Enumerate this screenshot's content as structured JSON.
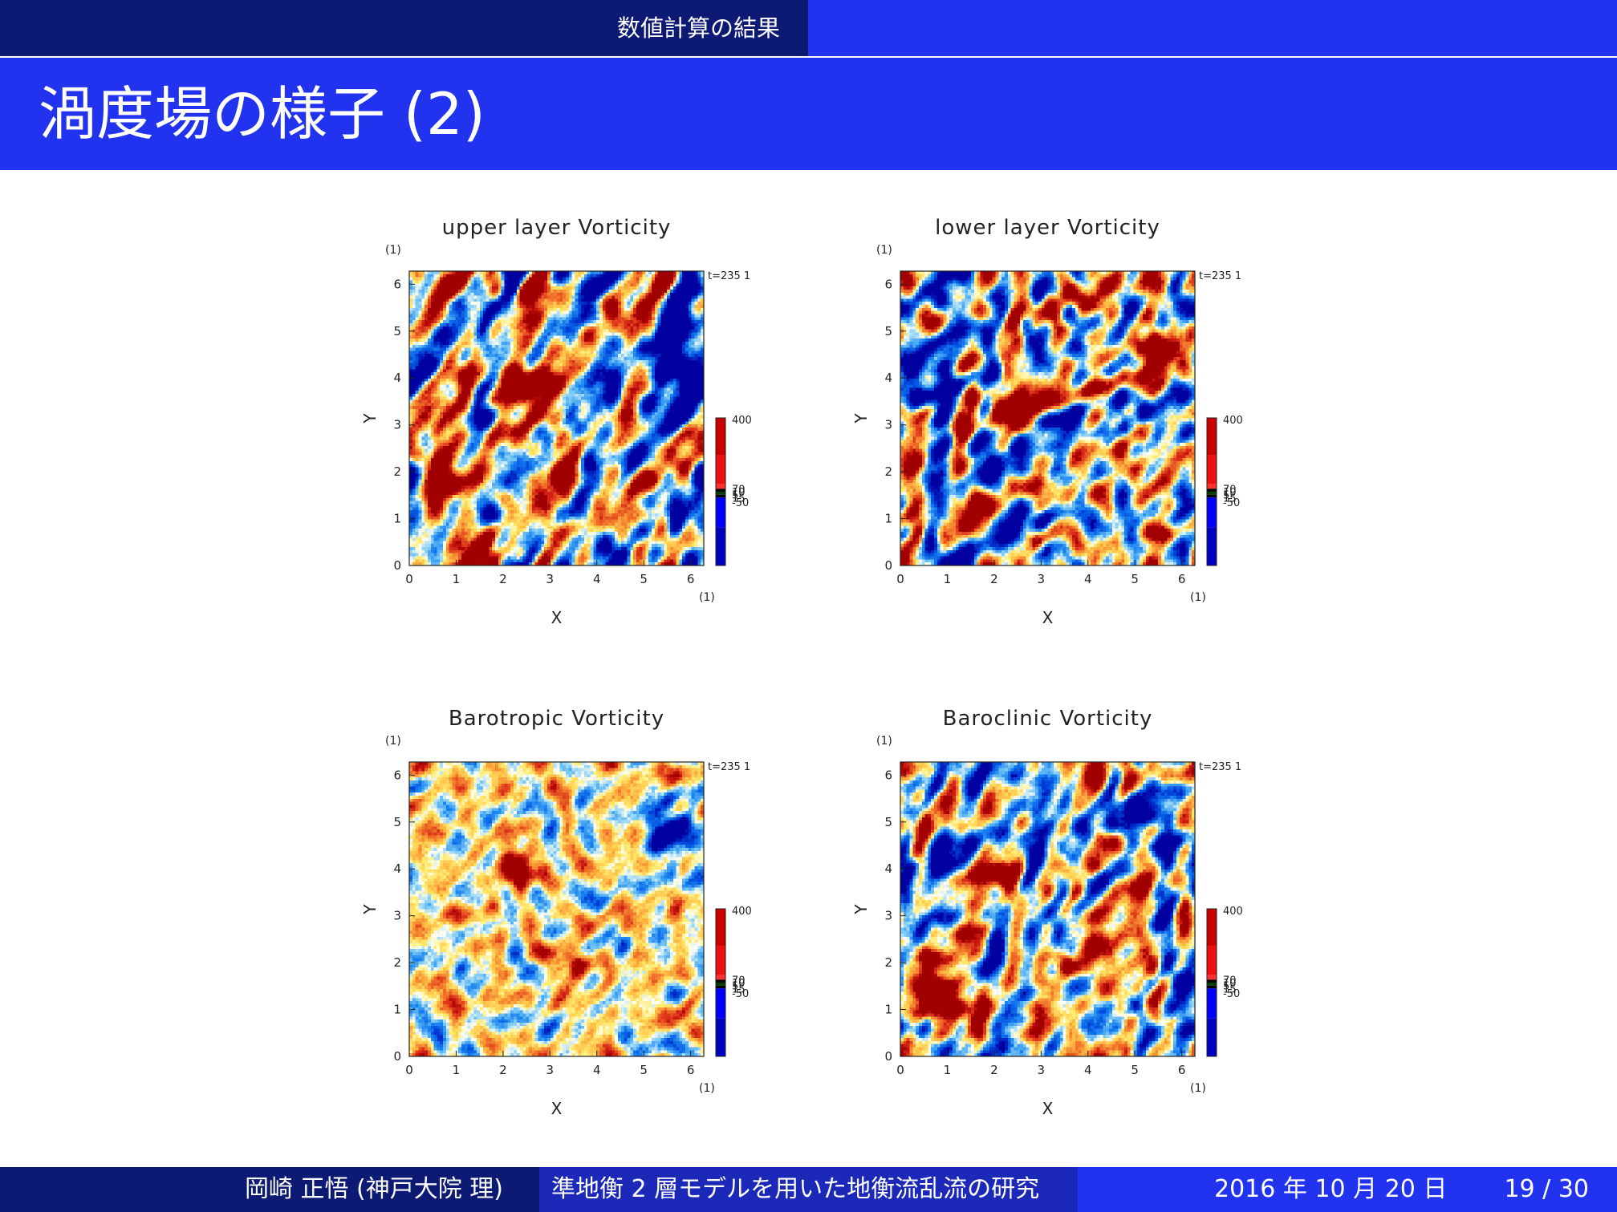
{
  "header": {
    "section": "数値計算の結果"
  },
  "slide": {
    "title": "渦度場の様子 (2)"
  },
  "footer": {
    "author": "岡崎 正悟 (神戸大院 理)",
    "talk_title": "準地衡 2 層モデルを用いた地衡流乱流の研究",
    "date": "2016 年 10 月 20 日",
    "page": "19 / 30"
  },
  "colors": {
    "header_dark": "#0d1a73",
    "header_blue": "#2233f0",
    "footer_mid": "#1b28b8"
  },
  "chart_data": [
    {
      "type": "heatmap",
      "title": "upper layer Vorticity",
      "xlabel": "X",
      "ylabel": "Y",
      "x_unit": "(1)",
      "y_unit": "(1)",
      "xlim": [
        0,
        6.28
      ],
      "ylim": [
        0,
        6.28
      ],
      "xticks": [
        "0",
        "1",
        "2",
        "3",
        "4",
        "5",
        "6"
      ],
      "yticks": [
        "0",
        "1",
        "2",
        "3",
        "4",
        "5",
        "6"
      ],
      "time_label": "t=235 1",
      "colorbar_labels": [
        "400",
        "70",
        "10",
        "5",
        "15",
        "-50"
      ],
      "style": "upper"
    },
    {
      "type": "heatmap",
      "title": "lower layer Vorticity",
      "xlabel": "X",
      "ylabel": "Y",
      "x_unit": "(1)",
      "y_unit": "(1)",
      "xlim": [
        0,
        6.28
      ],
      "ylim": [
        0,
        6.28
      ],
      "xticks": [
        "0",
        "1",
        "2",
        "3",
        "4",
        "5",
        "6"
      ],
      "yticks": [
        "0",
        "1",
        "2",
        "3",
        "4",
        "5",
        "6"
      ],
      "time_label": "t=235 1",
      "colorbar_labels": [
        "400",
        "70",
        "10",
        "5",
        "15",
        "-50"
      ],
      "style": "lower"
    },
    {
      "type": "heatmap",
      "title": "Barotropic Vorticity",
      "xlabel": "X",
      "ylabel": "Y",
      "x_unit": "(1)",
      "y_unit": "(1)",
      "xlim": [
        0,
        6.28
      ],
      "ylim": [
        0,
        6.28
      ],
      "xticks": [
        "0",
        "1",
        "2",
        "3",
        "4",
        "5",
        "6"
      ],
      "yticks": [
        "0",
        "1",
        "2",
        "3",
        "4",
        "5",
        "6"
      ],
      "time_label": "t=235 1",
      "colorbar_labels": [
        "400",
        "70",
        "10",
        "5",
        "15",
        "-50"
      ],
      "style": "barotropic"
    },
    {
      "type": "heatmap",
      "title": "Baroclinic Vorticity",
      "xlabel": "X",
      "ylabel": "Y",
      "x_unit": "(1)",
      "y_unit": "(1)",
      "xlim": [
        0,
        6.28
      ],
      "ylim": [
        0,
        6.28
      ],
      "xticks": [
        "0",
        "1",
        "2",
        "3",
        "4",
        "5",
        "6"
      ],
      "yticks": [
        "0",
        "1",
        "2",
        "3",
        "4",
        "5",
        "6"
      ],
      "time_label": "t=235 1",
      "colorbar_labels": [
        "400",
        "70",
        "10",
        "5",
        "15",
        "-50"
      ],
      "style": "baroclinic"
    }
  ]
}
